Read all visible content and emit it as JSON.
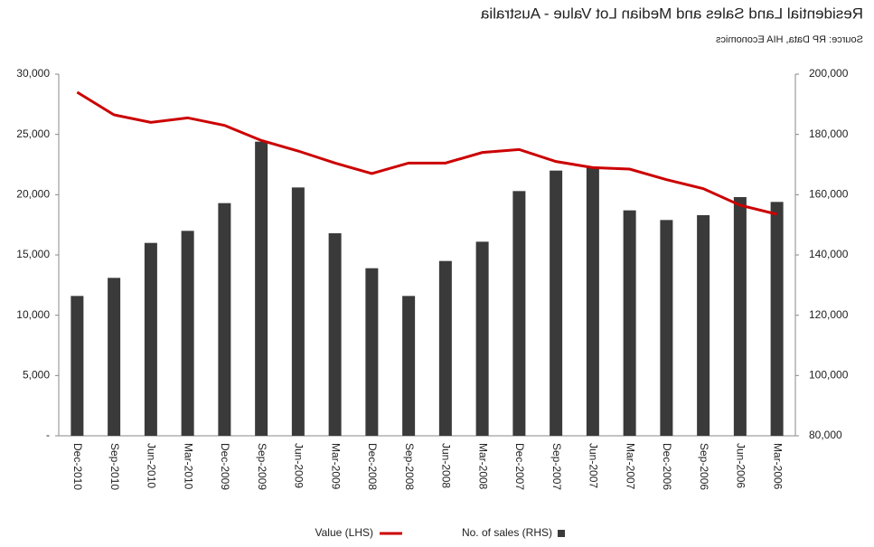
{
  "chart_data": {
    "type": "bar-line",
    "title": "Residential Land Sales and Median Lot Value - Australia",
    "subtitle": "Source: RP Data, HIA Economics",
    "categories": [
      "Mar-2006",
      "Jun-2006",
      "Sep-2006",
      "Dec-2006",
      "Mar-2007",
      "Jun-2007",
      "Sep-2007",
      "Dec-2007",
      "Mar-2008",
      "Jun-2008",
      "Sep-2008",
      "Dec-2008",
      "Mar-2009",
      "Jun-2009",
      "Sep-2009",
      "Dec-2009",
      "Mar-2010",
      "Jun-2010",
      "Sep-2010",
      "Dec-2010"
    ],
    "series": [
      {
        "name": "No. of sales (RHS)",
        "color": "#3a3a3a",
        "axis": "y2",
        "kind": "bar",
        "values": [
          19400,
          19800,
          18300,
          17900,
          18700,
          22300,
          22000,
          20300,
          16100,
          14500,
          11600,
          13900,
          16800,
          20600,
          24400,
          19300,
          17000,
          16000,
          13100,
          11600
        ]
      },
      {
        "name": "Value (LHS)",
        "color": "#cc0000",
        "kind": "line",
        "values": [
          153500,
          156500,
          162000,
          165000,
          168500,
          169000,
          171000,
          175000,
          174000,
          170500,
          170500,
          167000,
          170500,
          174500,
          178000,
          183000,
          185500,
          184000,
          186500,
          194000
        ]
      }
    ],
    "ylim": [
      80000,
      200000
    ],
    "yticks": [
      {
        "value": 80000,
        "label": "80,000"
      },
      {
        "value": 100000,
        "label": "100,000"
      },
      {
        "value": 120000,
        "label": "120,000"
      },
      {
        "value": 140000,
        "label": "140,000"
      },
      {
        "value": 160000,
        "label": "160,000"
      },
      {
        "value": 180000,
        "label": "180,000"
      },
      {
        "value": 200000,
        "label": "200,000"
      }
    ],
    "y2lim": [
      0,
      30000
    ],
    "y2ticks": [
      {
        "value": 0,
        "label": "-"
      },
      {
        "value": 5000,
        "label": "5,000"
      },
      {
        "value": 10000,
        "label": "10,000"
      },
      {
        "value": 15000,
        "label": "15,000"
      },
      {
        "value": 20000,
        "label": "20,000"
      },
      {
        "value": 25000,
        "label": "25,000"
      },
      {
        "value": 30000,
        "label": "30,000"
      }
    ],
    "grid": false,
    "mirrored": true
  }
}
